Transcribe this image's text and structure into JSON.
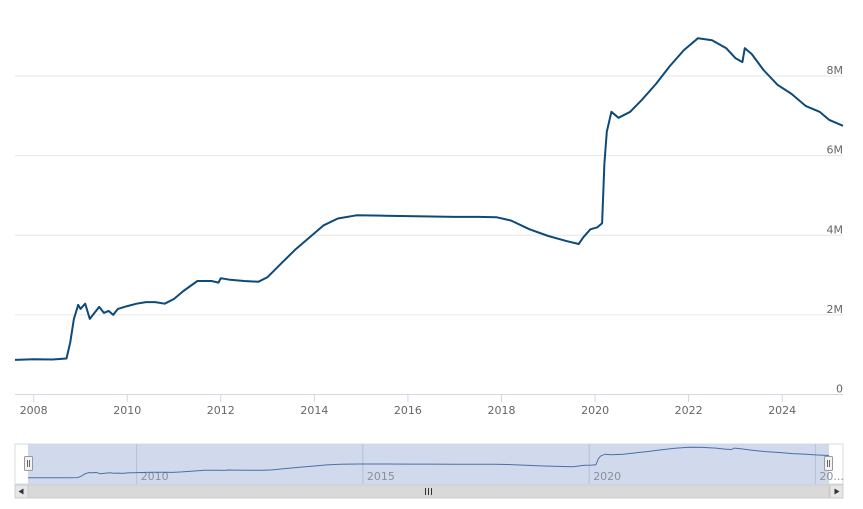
{
  "chart_data": {
    "type": "line",
    "title": "",
    "xlabel": "",
    "ylabel": "",
    "x_ticks": [
      "2008",
      "2010",
      "2012",
      "2014",
      "2016",
      "2018",
      "2020",
      "2022",
      "2024"
    ],
    "y_ticks": [
      "0",
      "2M",
      "4M",
      "6M",
      "8M"
    ],
    "ylim": [
      0,
      10000000
    ],
    "xlim": [
      2007.6,
      2025.3
    ],
    "grid": true,
    "line_color": "#0d4a7a",
    "series": [
      {
        "values": [
          [
            2007.6,
            870000
          ],
          [
            2008.0,
            885000
          ],
          [
            2008.4,
            880000
          ],
          [
            2008.7,
            905000
          ],
          [
            2008.78,
            1300000
          ],
          [
            2008.86,
            1900000
          ],
          [
            2008.95,
            2250000
          ],
          [
            2009.0,
            2150000
          ],
          [
            2009.1,
            2280000
          ],
          [
            2009.2,
            1900000
          ],
          [
            2009.3,
            2050000
          ],
          [
            2009.4,
            2200000
          ],
          [
            2009.5,
            2050000
          ],
          [
            2009.6,
            2100000
          ],
          [
            2009.7,
            2000000
          ],
          [
            2009.8,
            2150000
          ],
          [
            2010.0,
            2220000
          ],
          [
            2010.2,
            2280000
          ],
          [
            2010.4,
            2320000
          ],
          [
            2010.6,
            2320000
          ],
          [
            2010.8,
            2280000
          ],
          [
            2011.0,
            2400000
          ],
          [
            2011.2,
            2600000
          ],
          [
            2011.5,
            2850000
          ],
          [
            2011.8,
            2850000
          ],
          [
            2011.95,
            2810000
          ],
          [
            2012.0,
            2920000
          ],
          [
            2012.2,
            2880000
          ],
          [
            2012.5,
            2850000
          ],
          [
            2012.8,
            2830000
          ],
          [
            2013.0,
            2950000
          ],
          [
            2013.3,
            3300000
          ],
          [
            2013.6,
            3650000
          ],
          [
            2013.9,
            3950000
          ],
          [
            2014.2,
            4250000
          ],
          [
            2014.5,
            4420000
          ],
          [
            2014.9,
            4500000
          ],
          [
            2015.5,
            4490000
          ],
          [
            2016.0,
            4480000
          ],
          [
            2016.5,
            4470000
          ],
          [
            2017.0,
            4460000
          ],
          [
            2017.5,
            4460000
          ],
          [
            2017.9,
            4450000
          ],
          [
            2018.2,
            4370000
          ],
          [
            2018.6,
            4150000
          ],
          [
            2019.0,
            3980000
          ],
          [
            2019.4,
            3850000
          ],
          [
            2019.65,
            3780000
          ],
          [
            2019.75,
            3950000
          ],
          [
            2019.9,
            4150000
          ],
          [
            2020.05,
            4200000
          ],
          [
            2020.15,
            4300000
          ],
          [
            2020.2,
            5800000
          ],
          [
            2020.25,
            6600000
          ],
          [
            2020.35,
            7100000
          ],
          [
            2020.5,
            6950000
          ],
          [
            2020.75,
            7100000
          ],
          [
            2021.0,
            7400000
          ],
          [
            2021.3,
            7800000
          ],
          [
            2021.6,
            8250000
          ],
          [
            2021.9,
            8650000
          ],
          [
            2022.2,
            8950000
          ],
          [
            2022.5,
            8900000
          ],
          [
            2022.8,
            8700000
          ],
          [
            2023.0,
            8450000
          ],
          [
            2023.15,
            8350000
          ],
          [
            2023.2,
            8700000
          ],
          [
            2023.35,
            8550000
          ],
          [
            2023.6,
            8150000
          ],
          [
            2023.9,
            7780000
          ],
          [
            2024.2,
            7550000
          ],
          [
            2024.5,
            7250000
          ],
          [
            2024.8,
            7100000
          ],
          [
            2025.0,
            6900000
          ],
          [
            2025.3,
            6750000
          ]
        ]
      }
    ]
  },
  "navigator": {
    "labels": [
      "2010",
      "2015",
      "2020",
      "20..."
    ],
    "label_years": [
      2010,
      2015,
      2020,
      2025
    ],
    "range": [
      2007.6,
      2025.3
    ],
    "fill_color": "#c9d3ea",
    "handle_left_icon": "grip-handle-left",
    "handle_right_icon": "grip-handle-right",
    "scrollbar_left_icon": "arrow-left",
    "scrollbar_right_icon": "arrow-right",
    "scrollbar_grip_icon": "grip-lines"
  }
}
